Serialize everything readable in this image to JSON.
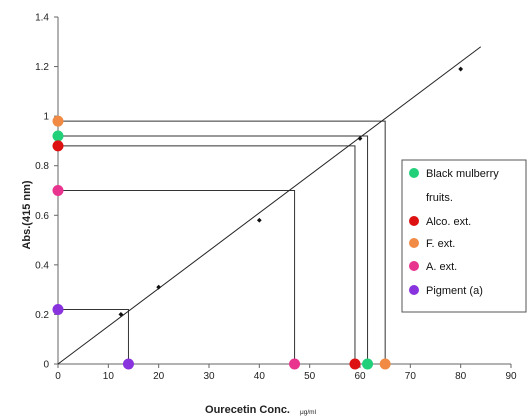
{
  "chart_data": {
    "type": "scatter",
    "title": "",
    "xlabel": "Ourecetin Conc.",
    "xlabel_unit": "μg/ml",
    "ylabel": "Abs.(415 nm)",
    "xlim": [
      0,
      90
    ],
    "ylim": [
      0,
      1.4
    ],
    "x_ticks": [
      "0",
      "10",
      "20",
      "30",
      "40",
      "50",
      "60",
      "70",
      "80",
      "90"
    ],
    "y_ticks": [
      "0",
      "0.2",
      "0.4",
      "0.6",
      "0.8",
      "1",
      "1.2",
      "1.4"
    ],
    "grid": false,
    "legend_position": "right",
    "calibration": {
      "points": [
        {
          "x": 12.5,
          "y": 0.2
        },
        {
          "x": 20,
          "y": 0.31
        },
        {
          "x": 40,
          "y": 0.58
        },
        {
          "x": 60,
          "y": 0.91
        },
        {
          "x": 80,
          "y": 1.19
        }
      ],
      "fit_line": {
        "x1": 0,
        "y1": 0,
        "x2": 84,
        "y2": 1.28
      },
      "color": "#000000"
    },
    "samples": [
      {
        "name": "Black mulberry fruits.",
        "absorbance": 0.92,
        "concentration": 61.5,
        "color": "#22d07a"
      },
      {
        "name": "Alco. ext.",
        "absorbance": 0.88,
        "concentration": 59,
        "color": "#dd1111"
      },
      {
        "name": "F. ext.",
        "absorbance": 0.98,
        "concentration": 65,
        "color": "#f08a44"
      },
      {
        "name": "A. ext.",
        "absorbance": 0.7,
        "concentration": 47,
        "color": "#e8338f"
      },
      {
        "name": "Pigment (a)",
        "absorbance": 0.22,
        "concentration": 14,
        "color": "#8833dd"
      }
    ]
  }
}
